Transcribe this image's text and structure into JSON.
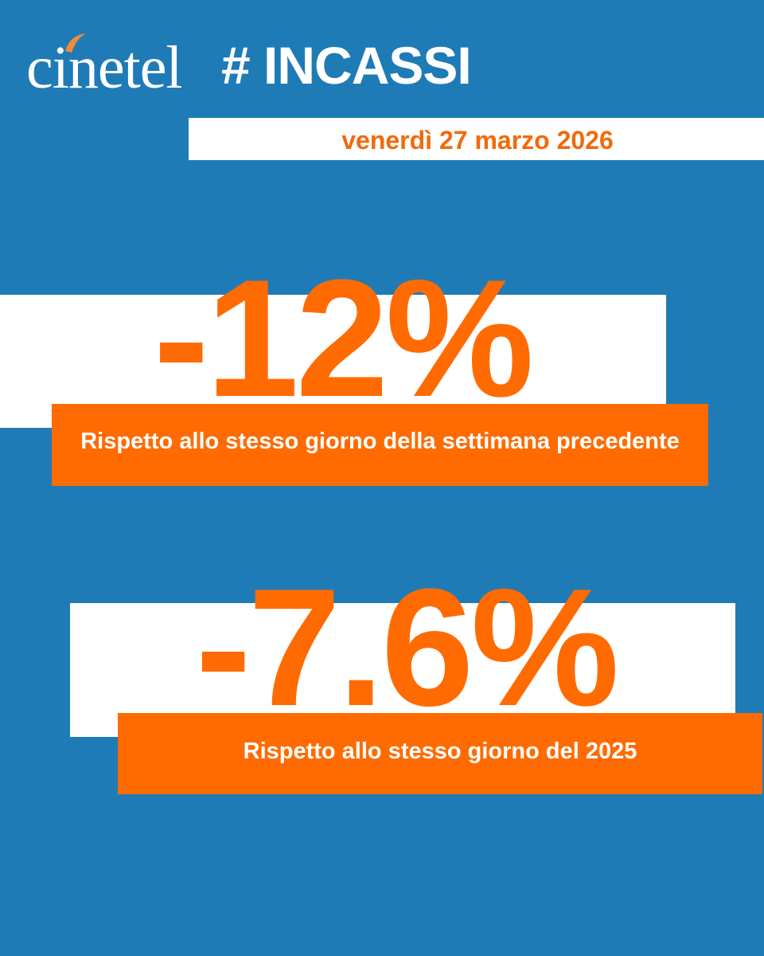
{
  "header": {
    "logo": "cinetel",
    "title": "# INCASSI",
    "date": "venerdì 27 marzo 2026"
  },
  "stats": [
    {
      "value": "-12%",
      "caption": "Rispetto allo stesso giorno della settimana precedente"
    },
    {
      "value": "-7.6%",
      "caption": "Rispetto allo stesso giorno del 2025"
    }
  ]
}
